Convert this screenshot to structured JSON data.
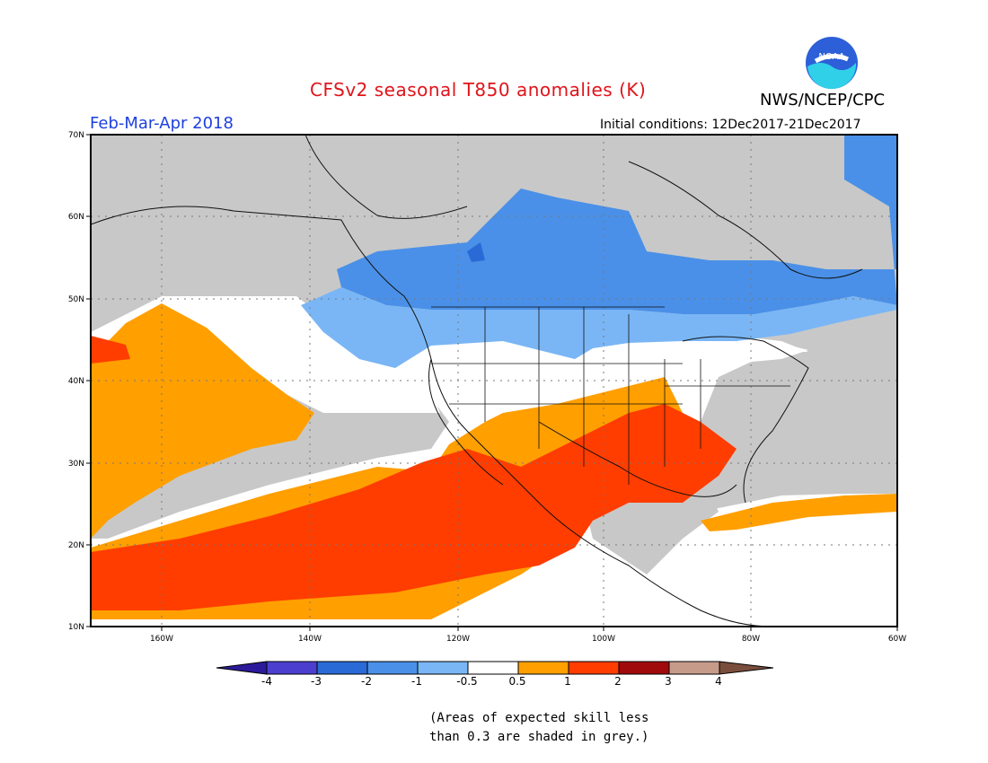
{
  "header": {
    "title": "CFSv2 seasonal T850 anomalies (K)",
    "season": "Feb-Mar-Apr 2018",
    "initial_conditions": "Initial conditions: 12Dec2017-21Dec2017",
    "org": "NWS/NCEP/CPC",
    "logo_text": "NOAA"
  },
  "axes": {
    "lat_labels": [
      "70N",
      "60N",
      "50N",
      "40N",
      "30N",
      "20N",
      "10N"
    ],
    "lon_labels": [
      "160W",
      "140W",
      "120W",
      "100W",
      "80W",
      "60W"
    ]
  },
  "colorbar": {
    "labels": [
      "-4",
      "-3",
      "-2",
      "-1",
      "-0.5",
      "0.5",
      "1",
      "2",
      "3",
      "4"
    ],
    "colors": [
      "#2b1b9a",
      "#4b3fd0",
      "#2a6ad6",
      "#4a90e8",
      "#7ab6f5",
      "#ffffff",
      "#ff9f00",
      "#ff3d00",
      "#a10a0a",
      "#c79b8a",
      "#7a4e3c"
    ]
  },
  "note": {
    "line1": "(Areas of expected skill less",
    "line2": "than 0.3 are shaded in grey.)"
  },
  "colors": {
    "grey": "#c8c8c8",
    "blue": "#4a90e8",
    "light_blue": "#7ab6f5",
    "dark_blue": "#2a6ad6",
    "orange": "#ff9f00",
    "red": "#ff3d00"
  }
}
